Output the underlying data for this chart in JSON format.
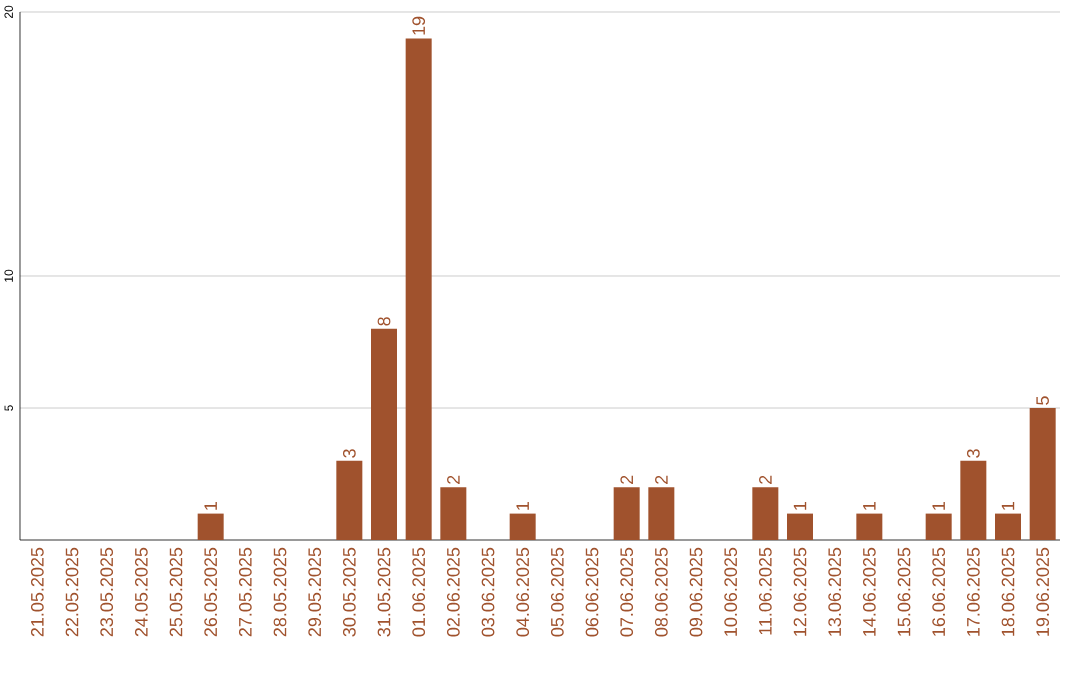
{
  "chart_data": {
    "type": "bar",
    "categories": [
      "21.05.2025",
      "22.05.2025",
      "23.05.2025",
      "24.05.2025",
      "25.05.2025",
      "26.05.2025",
      "27.05.2025",
      "28.05.2025",
      "29.05.2025",
      "30.05.2025",
      "31.05.2025",
      "01.06.2025",
      "02.06.2025",
      "03.06.2025",
      "04.06.2025",
      "05.06.2025",
      "06.06.2025",
      "07.06.2025",
      "08.06.2025",
      "09.06.2025",
      "10.06.2025",
      "11.06.2025",
      "12.06.2025",
      "13.06.2025",
      "14.06.2025",
      "15.06.2025",
      "16.06.2025",
      "17.06.2025",
      "18.06.2025",
      "19.06.2025"
    ],
    "values": [
      0,
      0,
      0,
      0,
      0,
      1,
      0,
      0,
      0,
      3,
      8,
      19,
      2,
      0,
      1,
      0,
      0,
      2,
      2,
      0,
      0,
      2,
      1,
      0,
      1,
      0,
      1,
      3,
      1,
      5
    ],
    "value_labels": [
      null,
      null,
      null,
      null,
      null,
      "1",
      null,
      null,
      null,
      "3",
      "8",
      "19",
      "2",
      null,
      "1",
      null,
      null,
      "2",
      "2",
      null,
      null,
      "2",
      "1",
      null,
      "1",
      null,
      "1",
      "3",
      "1",
      "5"
    ],
    "color": "#a0522d",
    "ylim": [
      0,
      20
    ],
    "yticks": [
      5,
      10,
      20
    ],
    "grid": "y"
  }
}
